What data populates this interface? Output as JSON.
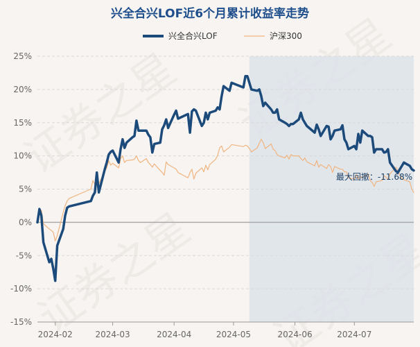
{
  "colors": {
    "background": "#f7f4f1",
    "title": "#1f4e8c",
    "fund_line": "#1c4a7a",
    "index_line": "#f1b47f",
    "drawdown_shade": "#dde3ea",
    "grid": "#d9d9d9",
    "zero_line": "#aaaaaa",
    "tick": "#666666",
    "watermark": "#e8e3de",
    "annotation": "#1c3f66"
  },
  "watermark_text": "证券之星",
  "chart_data": {
    "type": "line",
    "title": "兴全合兴LOF近6个月累计收益率走势",
    "xlabel": "",
    "ylabel": "",
    "ylim": [
      -15,
      25
    ],
    "yticks": [
      -15,
      -10,
      -5,
      0,
      5,
      10,
      15,
      20,
      25
    ],
    "ytick_labels": [
      "-15%",
      "-10%",
      "-5%",
      "0%",
      "5%",
      "10%",
      "15%",
      "20%",
      "25%"
    ],
    "x_start": "2024-01-23",
    "x_end": "2024-07-31",
    "xticks": [
      "2024-02",
      "2024-03",
      "2024-04",
      "2024-05",
      "2024-06",
      "2024-07"
    ],
    "xtick_dates": [
      "2024-02-01",
      "2024-03-01",
      "2024-04-01",
      "2024-05-01",
      "2024-06-01",
      "2024-07-01"
    ],
    "grid": true,
    "legend_position": "top-center",
    "drawdown": {
      "label": "最大回撤：-11.68%",
      "value": -11.68,
      "start": "2024-05-09",
      "end": "2024-07-31"
    },
    "series": [
      {
        "name": "兴全合兴LOF",
        "color": "#1c4a7a",
        "x": [
          "2024-01-23",
          "2024-01-24",
          "2024-01-25",
          "2024-01-26",
          "2024-01-29",
          "2024-01-30",
          "2024-01-31",
          "2024-02-01",
          "2024-02-02",
          "2024-02-05",
          "2024-02-06",
          "2024-02-07",
          "2024-02-08",
          "2024-02-19",
          "2024-02-20",
          "2024-02-21",
          "2024-02-22",
          "2024-02-23",
          "2024-02-26",
          "2024-02-27",
          "2024-02-28",
          "2024-02-29",
          "2024-03-01",
          "2024-03-04",
          "2024-03-05",
          "2024-03-06",
          "2024-03-07",
          "2024-03-08",
          "2024-03-11",
          "2024-03-12",
          "2024-03-13",
          "2024-03-14",
          "2024-03-15",
          "2024-03-18",
          "2024-03-19",
          "2024-03-20",
          "2024-03-21",
          "2024-03-22",
          "2024-03-25",
          "2024-03-26",
          "2024-03-27",
          "2024-03-28",
          "2024-03-29",
          "2024-04-01",
          "2024-04-02",
          "2024-04-03",
          "2024-04-08",
          "2024-04-09",
          "2024-04-10",
          "2024-04-11",
          "2024-04-12",
          "2024-04-15",
          "2024-04-16",
          "2024-04-17",
          "2024-04-18",
          "2024-04-19",
          "2024-04-22",
          "2024-04-23",
          "2024-04-24",
          "2024-04-25",
          "2024-04-26",
          "2024-04-29",
          "2024-04-30",
          "2024-05-06",
          "2024-05-07",
          "2024-05-08",
          "2024-05-09",
          "2024-05-10",
          "2024-05-13",
          "2024-05-14",
          "2024-05-15",
          "2024-05-16",
          "2024-05-17",
          "2024-05-20",
          "2024-05-21",
          "2024-05-22",
          "2024-05-23",
          "2024-05-24",
          "2024-05-27",
          "2024-05-28",
          "2024-05-29",
          "2024-05-30",
          "2024-05-31",
          "2024-06-03",
          "2024-06-04",
          "2024-06-05",
          "2024-06-06",
          "2024-06-07",
          "2024-06-11",
          "2024-06-12",
          "2024-06-13",
          "2024-06-14",
          "2024-06-17",
          "2024-06-18",
          "2024-06-19",
          "2024-06-20",
          "2024-06-21",
          "2024-06-24",
          "2024-06-25",
          "2024-06-26",
          "2024-06-27",
          "2024-06-28",
          "2024-07-01",
          "2024-07-02",
          "2024-07-03",
          "2024-07-04",
          "2024-07-05",
          "2024-07-08",
          "2024-07-09",
          "2024-07-10",
          "2024-07-11",
          "2024-07-12",
          "2024-07-15",
          "2024-07-16",
          "2024-07-17",
          "2024-07-18",
          "2024-07-19",
          "2024-07-22",
          "2024-07-23",
          "2024-07-24",
          "2024-07-25",
          "2024-07-26",
          "2024-07-29",
          "2024-07-30",
          "2024-07-31"
        ],
        "values": [
          0.0,
          2.0,
          1.0,
          -3.0,
          -6.0,
          -5.5,
          -7.0,
          -8.8,
          -3.5,
          -1.0,
          1.0,
          2.2,
          2.4,
          3.2,
          4.0,
          4.5,
          7.5,
          4.5,
          8.0,
          9.0,
          10.2,
          10.6,
          10.8,
          9.0,
          11.0,
          12.5,
          11.2,
          12.0,
          12.8,
          13.0,
          15.3,
          13.8,
          13.8,
          13.8,
          13.2,
          12.8,
          10.5,
          11.8,
          12.0,
          14.0,
          14.6,
          15.5,
          14.2,
          16.2,
          16.8,
          15.6,
          16.3,
          13.5,
          16.7,
          17.0,
          16.8,
          14.5,
          15.0,
          16.5,
          15.5,
          16.5,
          16.8,
          17.3,
          17.0,
          19.0,
          20.5,
          19.8,
          21.0,
          20.3,
          22.0,
          22.0,
          21.0,
          20.0,
          19.8,
          20.0,
          19.0,
          17.5,
          18.0,
          17.0,
          16.5,
          16.5,
          17.0,
          15.5,
          15.0,
          14.8,
          14.5,
          14.8,
          14.8,
          15.5,
          16.5,
          15.5,
          15.0,
          14.5,
          13.5,
          14.7,
          14.0,
          13.0,
          14.5,
          14.4,
          12.5,
          13.0,
          13.8,
          14.0,
          14.6,
          12.5,
          12.0,
          11.0,
          11.5,
          11.0,
          13.3,
          12.0,
          13.8,
          13.0,
          13.0,
          12.8,
          10.5,
          11.0,
          11.0,
          10.5,
          10.6,
          11.0,
          9.0,
          7.7,
          7.5,
          8.0,
          8.5,
          9.0,
          8.5,
          8.0,
          7.8
        ]
      },
      {
        "name": "沪深300",
        "color": "#f1b47f",
        "x": [
          "2024-01-23",
          "2024-01-24",
          "2024-01-25",
          "2024-01-26",
          "2024-01-29",
          "2024-01-30",
          "2024-01-31",
          "2024-02-01",
          "2024-02-02",
          "2024-02-05",
          "2024-02-06",
          "2024-02-07",
          "2024-02-08",
          "2024-02-19",
          "2024-02-20",
          "2024-02-21",
          "2024-02-22",
          "2024-02-23",
          "2024-02-26",
          "2024-02-27",
          "2024-02-28",
          "2024-02-29",
          "2024-03-01",
          "2024-03-04",
          "2024-03-05",
          "2024-03-06",
          "2024-03-07",
          "2024-03-08",
          "2024-03-11",
          "2024-03-12",
          "2024-03-13",
          "2024-03-14",
          "2024-03-15",
          "2024-03-18",
          "2024-03-19",
          "2024-03-20",
          "2024-03-21",
          "2024-03-22",
          "2024-03-25",
          "2024-03-26",
          "2024-03-27",
          "2024-03-28",
          "2024-03-29",
          "2024-04-01",
          "2024-04-02",
          "2024-04-03",
          "2024-04-08",
          "2024-04-09",
          "2024-04-10",
          "2024-04-11",
          "2024-04-12",
          "2024-04-15",
          "2024-04-16",
          "2024-04-17",
          "2024-04-18",
          "2024-04-19",
          "2024-04-22",
          "2024-04-23",
          "2024-04-24",
          "2024-04-25",
          "2024-04-26",
          "2024-04-29",
          "2024-04-30",
          "2024-05-06",
          "2024-05-07",
          "2024-05-08",
          "2024-05-09",
          "2024-05-10",
          "2024-05-13",
          "2024-05-14",
          "2024-05-15",
          "2024-05-16",
          "2024-05-17",
          "2024-05-20",
          "2024-05-21",
          "2024-05-22",
          "2024-05-23",
          "2024-05-24",
          "2024-05-27",
          "2024-05-28",
          "2024-05-29",
          "2024-05-30",
          "2024-05-31",
          "2024-06-03",
          "2024-06-04",
          "2024-06-05",
          "2024-06-06",
          "2024-06-07",
          "2024-06-11",
          "2024-06-12",
          "2024-06-13",
          "2024-06-14",
          "2024-06-17",
          "2024-06-18",
          "2024-06-19",
          "2024-06-20",
          "2024-06-21",
          "2024-06-24",
          "2024-06-25",
          "2024-06-26",
          "2024-06-27",
          "2024-06-28",
          "2024-07-01",
          "2024-07-02",
          "2024-07-03",
          "2024-07-04",
          "2024-07-05",
          "2024-07-08",
          "2024-07-09",
          "2024-07-10",
          "2024-07-11",
          "2024-07-12",
          "2024-07-15",
          "2024-07-16",
          "2024-07-17",
          "2024-07-18",
          "2024-07-19",
          "2024-07-22",
          "2024-07-23",
          "2024-07-24",
          "2024-07-25",
          "2024-07-26",
          "2024-07-29",
          "2024-07-30",
          "2024-07-31"
        ],
        "values": [
          0.0,
          2.0,
          1.8,
          -0.2,
          -1.0,
          -1.2,
          -1.5,
          -2.8,
          -2.0,
          1.5,
          2.5,
          3.2,
          3.6,
          5.0,
          6.3,
          5.7,
          6.9,
          5.8,
          7.7,
          8.2,
          9.3,
          8.6,
          8.9,
          8.2,
          9.6,
          10.0,
          9.0,
          9.3,
          9.4,
          9.5,
          10.0,
          9.3,
          9.0,
          9.6,
          9.0,
          8.7,
          8.3,
          8.8,
          7.8,
          7.5,
          7.1,
          9.1,
          8.7,
          8.2,
          8.0,
          7.5,
          6.7,
          7.5,
          8.0,
          6.5,
          7.4,
          8.2,
          7.6,
          8.6,
          7.9,
          8.7,
          9.5,
          10.1,
          11.2,
          11.5,
          10.6,
          11.3,
          11.7,
          11.4,
          11.6,
          11.5,
          11.1,
          10.6,
          11.2,
          11.9,
          12.5,
          12.0,
          11.1,
          11.8,
          11.0,
          10.8,
          10.2,
          10.0,
          9.7,
          10.1,
          9.5,
          10.2,
          10.0,
          10.0,
          9.6,
          9.3,
          9.7,
          9.1,
          8.5,
          9.3,
          8.3,
          8.7,
          8.1,
          8.7,
          8.4,
          7.5,
          8.4,
          8.0,
          8.0,
          7.6,
          7.6,
          6.7,
          6.5,
          7.2,
          6.5,
          6.9,
          6.7,
          7.3,
          6.3,
          6.0,
          5.4,
          6.1,
          6.3,
          7.0,
          6.8,
          6.5,
          7.3,
          8.3,
          7.8,
          7.1,
          6.6,
          6.4,
          6.1,
          5.0,
          4.5
        ]
      }
    ]
  }
}
